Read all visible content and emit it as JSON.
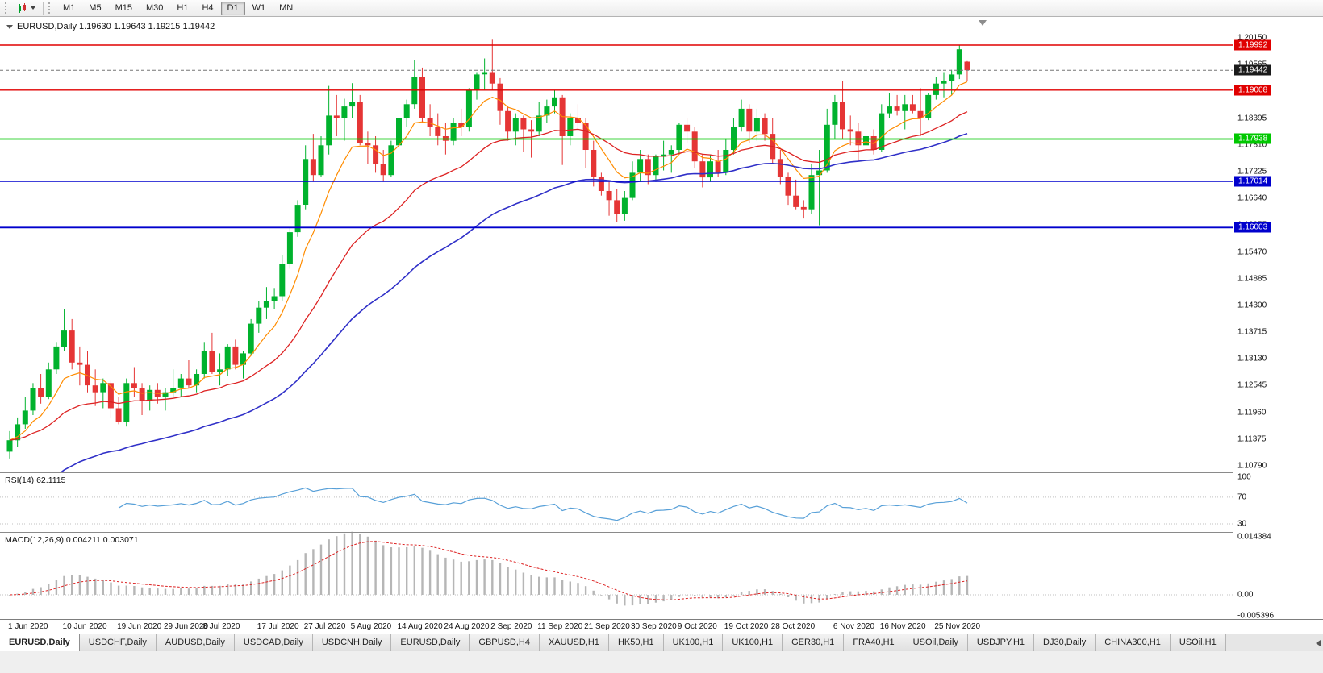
{
  "toolbar": {
    "timeframes": [
      {
        "label": "M1",
        "active": false
      },
      {
        "label": "M5",
        "active": false
      },
      {
        "label": "M15",
        "active": false
      },
      {
        "label": "M30",
        "active": false
      },
      {
        "label": "H1",
        "active": false
      },
      {
        "label": "H4",
        "active": false
      },
      {
        "label": "D1",
        "active": true
      },
      {
        "label": "W1",
        "active": false
      },
      {
        "label": "MN",
        "active": false
      }
    ]
  },
  "chart_data": {
    "type": "candlestick",
    "symbol": "EURUSD",
    "timeframe": "Daily",
    "title": "EURUSD,Daily 1.19630 1.19643 1.19215 1.19442",
    "last_quote": {
      "open": 1.1963,
      "high": 1.19643,
      "low": 1.19215,
      "close": 1.19442
    },
    "colors": {
      "up": "#00b22d",
      "down": "#e53535"
    },
    "y_axis": {
      "max": 1.2015,
      "min": 1.1079,
      "ticks": [
        "1.20150",
        "1.19565",
        "1.18980",
        "1.18395",
        "1.17810",
        "1.17225",
        "1.16640",
        "1.16055",
        "1.15470",
        "1.14885",
        "1.14300",
        "1.13715",
        "1.13130",
        "1.12545",
        "1.11960",
        "1.11375",
        "1.10790"
      ]
    },
    "x_axis": {
      "labels": [
        {
          "text": "1 Jun 2020",
          "index": 0
        },
        {
          "text": "10 Jun 2020",
          "index": 7
        },
        {
          "text": "19 Jun 2020",
          "index": 14
        },
        {
          "text": "29 Jun 2020",
          "index": 20
        },
        {
          "text": "8 Jul 2020",
          "index": 25
        },
        {
          "text": "17 Jul 2020",
          "index": 32
        },
        {
          "text": "27 Jul 2020",
          "index": 38
        },
        {
          "text": "5 Aug 2020",
          "index": 44
        },
        {
          "text": "14 Aug 2020",
          "index": 50
        },
        {
          "text": "24 Aug 2020",
          "index": 56
        },
        {
          "text": "2 Sep 2020",
          "index": 62
        },
        {
          "text": "11 Sep 2020",
          "index": 68
        },
        {
          "text": "21 Sep 2020",
          "index": 74
        },
        {
          "text": "30 Sep 2020",
          "index": 80
        },
        {
          "text": "9 Oct 2020",
          "index": 86
        },
        {
          "text": "19 Oct 2020",
          "index": 92
        },
        {
          "text": "28 Oct 2020",
          "index": 98
        },
        {
          "text": "6 Nov 2020",
          "index": 106
        },
        {
          "text": "16 Nov 2020",
          "index": 112
        },
        {
          "text": "25 Nov 2020",
          "index": 119
        }
      ]
    },
    "levels": [
      {
        "price": 1.19992,
        "label": "1.19992",
        "color": "#e00000",
        "width": 1.4,
        "type": "resistance"
      },
      {
        "price": 1.19008,
        "label": "1.19008",
        "color": "#e00000",
        "width": 1.4,
        "type": "resistance"
      },
      {
        "price": 1.17938,
        "label": "1.17938",
        "color": "#00c800",
        "width": 1.8,
        "type": "pivot"
      },
      {
        "price": 1.17014,
        "label": "1.17014",
        "color": "#0000cd",
        "width": 1.8,
        "type": "support"
      },
      {
        "price": 1.16003,
        "label": "1.16003",
        "color": "#0000cd",
        "width": 1.8,
        "type": "support"
      }
    ],
    "current_price": {
      "value": 1.19442,
      "label": "1.19442",
      "bg": "#1a1a1a"
    },
    "moving_averages": [
      {
        "period": 8,
        "method": "ema",
        "color": "#ff8c00",
        "width": 1.2
      },
      {
        "period": 25,
        "method": "ema",
        "color": "#dd2222",
        "width": 1.3
      },
      {
        "period": 50,
        "method": "ema",
        "color": "#3030c8",
        "width": 1.6,
        "seed": 1.1
      }
    ],
    "indicators": {
      "rsi": {
        "label": "RSI(14) 62.1115",
        "period": 14,
        "value": 62.1115,
        "levels": [
          100,
          70,
          30
        ],
        "color": "#58a0d8"
      },
      "macd": {
        "label": "MACD(12,26,9) 0.004211 0.003071",
        "fast": 12,
        "slow": 26,
        "signal": 9,
        "value": 0.004211,
        "signal_value": 0.003071,
        "scale_max": 0.014384,
        "scale_min": -0.005396,
        "axis": [
          {
            "label": "0.014384",
            "value": 0.014384
          },
          {
            "label": "0.00",
            "value": 0
          },
          {
            "label": "-0.005396",
            "value": -0.005396
          }
        ],
        "histogram_color": "#b6b6b6",
        "signal_color": "#dd2222"
      }
    },
    "candles": [
      [
        1.111,
        1.1155,
        1.1095,
        1.1135
      ],
      [
        1.1135,
        1.1185,
        1.112,
        1.117
      ],
      [
        1.117,
        1.123,
        1.116,
        1.12
      ],
      [
        1.12,
        1.126,
        1.119,
        1.125
      ],
      [
        1.125,
        1.128,
        1.1215,
        1.123
      ],
      [
        1.123,
        1.1305,
        1.1225,
        1.129
      ],
      [
        1.129,
        1.135,
        1.128,
        1.134
      ],
      [
        1.134,
        1.1422,
        1.133,
        1.1375
      ],
      [
        1.1375,
        1.14,
        1.129,
        1.1305
      ],
      [
        1.1305,
        1.134,
        1.1255,
        1.13
      ],
      [
        1.13,
        1.133,
        1.124,
        1.1255
      ],
      [
        1.1255,
        1.129,
        1.121,
        1.124
      ],
      [
        1.124,
        1.127,
        1.1205,
        1.126
      ],
      [
        1.126,
        1.1265,
        1.1185,
        1.1205
      ],
      [
        1.1205,
        1.123,
        1.117,
        1.1175
      ],
      [
        1.1175,
        1.127,
        1.1165,
        1.126
      ],
      [
        1.126,
        1.1295,
        1.123,
        1.125
      ],
      [
        1.125,
        1.126,
        1.119,
        1.122
      ],
      [
        1.122,
        1.1255,
        1.12,
        1.1245
      ],
      [
        1.1245,
        1.126,
        1.1215,
        1.123
      ],
      [
        1.123,
        1.125,
        1.12,
        1.124
      ],
      [
        1.124,
        1.129,
        1.123,
        1.125
      ],
      [
        1.125,
        1.128,
        1.123,
        1.127
      ],
      [
        1.127,
        1.131,
        1.125,
        1.1255
      ],
      [
        1.1255,
        1.129,
        1.124,
        1.128
      ],
      [
        1.128,
        1.135,
        1.127,
        1.133
      ],
      [
        1.133,
        1.137,
        1.128,
        1.1285
      ],
      [
        1.1285,
        1.1325,
        1.1255,
        1.129
      ],
      [
        1.129,
        1.1345,
        1.1275,
        1.134
      ],
      [
        1.134,
        1.1355,
        1.129,
        1.13
      ],
      [
        1.13,
        1.133,
        1.127,
        1.1325
      ],
      [
        1.1325,
        1.14,
        1.132,
        1.139
      ],
      [
        1.139,
        1.144,
        1.137,
        1.1425
      ],
      [
        1.1425,
        1.147,
        1.14,
        1.144
      ],
      [
        1.144,
        1.1468,
        1.1422,
        1.145
      ],
      [
        1.145,
        1.154,
        1.144,
        1.152
      ],
      [
        1.152,
        1.16,
        1.151,
        1.159
      ],
      [
        1.159,
        1.166,
        1.158,
        1.165
      ],
      [
        1.165,
        1.178,
        1.164,
        1.175
      ],
      [
        1.175,
        1.1805,
        1.17,
        1.1715
      ],
      [
        1.1715,
        1.18,
        1.171,
        1.178
      ],
      [
        1.178,
        1.191,
        1.176,
        1.1845
      ],
      [
        1.1845,
        1.189,
        1.18,
        1.184
      ],
      [
        1.184,
        1.1882,
        1.179,
        1.1865
      ],
      [
        1.1865,
        1.1916,
        1.184,
        1.1875
      ],
      [
        1.1875,
        1.189,
        1.178,
        1.1785
      ],
      [
        1.1785,
        1.181,
        1.174,
        1.178
      ],
      [
        1.178,
        1.18,
        1.172,
        1.174
      ],
      [
        1.174,
        1.177,
        1.17,
        1.1715
      ],
      [
        1.1715,
        1.179,
        1.171,
        1.178
      ],
      [
        1.178,
        1.185,
        1.177,
        1.184
      ],
      [
        1.184,
        1.188,
        1.182,
        1.187
      ],
      [
        1.187,
        1.1966,
        1.186,
        1.193
      ],
      [
        1.193,
        1.195,
        1.183,
        1.184
      ],
      [
        1.184,
        1.187,
        1.18,
        1.182
      ],
      [
        1.182,
        1.185,
        1.178,
        1.18
      ],
      [
        1.18,
        1.183,
        1.176,
        1.179
      ],
      [
        1.179,
        1.184,
        1.178,
        1.183
      ],
      [
        1.183,
        1.186,
        1.18,
        1.182
      ],
      [
        1.182,
        1.1905,
        1.181,
        1.19
      ],
      [
        1.19,
        1.194,
        1.188,
        1.1935
      ],
      [
        1.1935,
        1.197,
        1.19,
        1.194
      ],
      [
        1.194,
        1.2011,
        1.19,
        1.1915
      ],
      [
        1.1915,
        1.1927,
        1.1825,
        1.1855
      ],
      [
        1.1855,
        1.1865,
        1.179,
        1.181
      ],
      [
        1.181,
        1.185,
        1.178,
        1.184
      ],
      [
        1.184,
        1.1845,
        1.1765,
        1.1815
      ],
      [
        1.1815,
        1.1835,
        1.1753,
        1.181
      ],
      [
        1.181,
        1.1875,
        1.18,
        1.1845
      ],
      [
        1.1845,
        1.188,
        1.183,
        1.1865
      ],
      [
        1.1865,
        1.19,
        1.185,
        1.1885
      ],
      [
        1.1885,
        1.189,
        1.1737,
        1.18
      ],
      [
        1.18,
        1.185,
        1.178,
        1.184
      ],
      [
        1.184,
        1.187,
        1.181,
        1.183
      ],
      [
        1.183,
        1.184,
        1.173,
        1.177
      ],
      [
        1.177,
        1.179,
        1.169,
        1.171
      ],
      [
        1.171,
        1.172,
        1.167,
        1.168
      ],
      [
        1.168,
        1.17,
        1.1626,
        1.166
      ],
      [
        1.166,
        1.1685,
        1.1612,
        1.163
      ],
      [
        1.163,
        1.168,
        1.1615,
        1.1665
      ],
      [
        1.1665,
        1.1745,
        1.166,
        1.172
      ],
      [
        1.172,
        1.177,
        1.17,
        1.175
      ],
      [
        1.175,
        1.176,
        1.1695,
        1.1715
      ],
      [
        1.1715,
        1.176,
        1.17,
        1.1755
      ],
      [
        1.1755,
        1.179,
        1.1725,
        1.176
      ],
      [
        1.176,
        1.178,
        1.172,
        1.177
      ],
      [
        1.177,
        1.183,
        1.176,
        1.1825
      ],
      [
        1.1825,
        1.184,
        1.1785,
        1.181
      ],
      [
        1.181,
        1.182,
        1.173,
        1.1745
      ],
      [
        1.1745,
        1.176,
        1.1688,
        1.171
      ],
      [
        1.171,
        1.176,
        1.17,
        1.1745
      ],
      [
        1.1745,
        1.177,
        1.171,
        1.172
      ],
      [
        1.172,
        1.1795,
        1.1715,
        1.177
      ],
      [
        1.177,
        1.184,
        1.176,
        1.182
      ],
      [
        1.182,
        1.188,
        1.181,
        1.186
      ],
      [
        1.186,
        1.187,
        1.1785,
        1.181
      ],
      [
        1.181,
        1.186,
        1.179,
        1.184
      ],
      [
        1.184,
        1.185,
        1.179,
        1.1805
      ],
      [
        1.1805,
        1.184,
        1.174,
        1.175
      ],
      [
        1.175,
        1.177,
        1.1695,
        1.171
      ],
      [
        1.171,
        1.172,
        1.165,
        1.167
      ],
      [
        1.167,
        1.1705,
        1.164,
        1.1645
      ],
      [
        1.1645,
        1.166,
        1.162,
        1.164
      ],
      [
        1.164,
        1.174,
        1.163,
        1.1715
      ],
      [
        1.1715,
        1.177,
        1.1605,
        1.1725
      ],
      [
        1.1725,
        1.186,
        1.172,
        1.1825
      ],
      [
        1.1825,
        1.189,
        1.1795,
        1.1875
      ],
      [
        1.1875,
        1.192,
        1.1795,
        1.1815
      ],
      [
        1.1815,
        1.1845,
        1.178,
        1.181
      ],
      [
        1.181,
        1.183,
        1.1745,
        1.178
      ],
      [
        1.178,
        1.1825,
        1.176,
        1.18
      ],
      [
        1.18,
        1.1815,
        1.176,
        1.177
      ],
      [
        1.177,
        1.187,
        1.1765,
        1.185
      ],
      [
        1.185,
        1.1895,
        1.184,
        1.1865
      ],
      [
        1.1865,
        1.189,
        1.1845,
        1.1855
      ],
      [
        1.1855,
        1.189,
        1.1815,
        1.187
      ],
      [
        1.187,
        1.189,
        1.185,
        1.1855
      ],
      [
        1.1855,
        1.1905,
        1.18,
        1.184
      ],
      [
        1.184,
        1.1895,
        1.1835,
        1.189
      ],
      [
        1.189,
        1.193,
        1.188,
        1.1915
      ],
      [
        1.1915,
        1.194,
        1.1885,
        1.192
      ],
      [
        1.192,
        1.1945,
        1.189,
        1.1935
      ],
      [
        1.1935,
        1.1999,
        1.1925,
        1.199
      ],
      [
        1.1963,
        1.19643,
        1.19215,
        1.19442
      ]
    ]
  },
  "tabs": {
    "items": [
      {
        "label": "EURUSD,Daily",
        "active": true
      },
      {
        "label": "USDCHF,Daily",
        "active": false
      },
      {
        "label": "AUDUSD,Daily",
        "active": false
      },
      {
        "label": "USDCAD,Daily",
        "active": false
      },
      {
        "label": "USDCNH,Daily",
        "active": false
      },
      {
        "label": "EURUSD,Daily",
        "active": false
      },
      {
        "label": "GBPUSD,H4",
        "active": false
      },
      {
        "label": "XAUUSD,H1",
        "active": false
      },
      {
        "label": "HK50,H1",
        "active": false
      },
      {
        "label": "UK100,H1",
        "active": false
      },
      {
        "label": "UK100,H1",
        "active": false
      },
      {
        "label": "GER30,H1",
        "active": false
      },
      {
        "label": "FRA40,H1",
        "active": false
      },
      {
        "label": "USOil,Daily",
        "active": false
      },
      {
        "label": "USDJPY,H1",
        "active": false
      },
      {
        "label": "DJ30,Daily",
        "active": false
      },
      {
        "label": "CHINA300,H1",
        "active": false
      },
      {
        "label": "USOil,H1",
        "active": false
      }
    ]
  }
}
